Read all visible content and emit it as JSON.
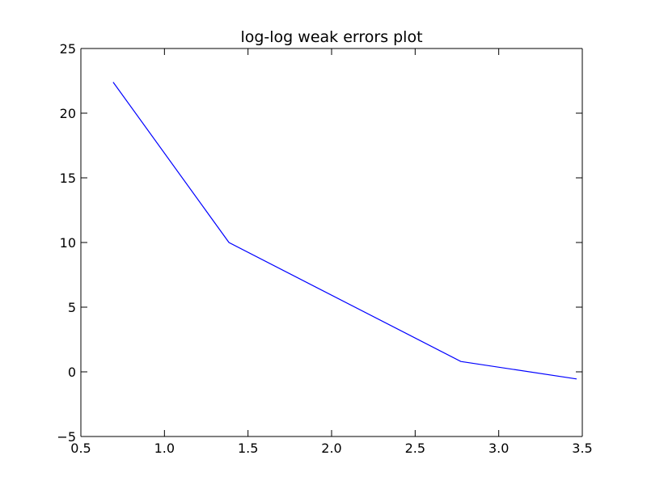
{
  "chart_data": {
    "type": "line",
    "title": "log-log weak errors plot",
    "xlabel": "",
    "ylabel": "",
    "xlim": [
      0.5,
      3.5
    ],
    "ylim": [
      -5,
      25
    ],
    "grid": false,
    "x_ticks": [
      0.5,
      1.0,
      1.5,
      2.0,
      2.5,
      3.0,
      3.5
    ],
    "x_tick_labels": [
      "0.5",
      "1.0",
      "1.5",
      "2.0",
      "2.5",
      "3.0",
      "3.5"
    ],
    "y_ticks": [
      -5,
      0,
      5,
      10,
      15,
      20,
      25
    ],
    "y_tick_labels": [
      "−5",
      "0",
      "5",
      "10",
      "15",
      "20",
      "25"
    ],
    "series": [
      {
        "color": "#0000ff",
        "x": [
          0.693,
          1.386,
          2.773,
          3.466
        ],
        "y": [
          22.4,
          10.0,
          0.8,
          -0.55
        ]
      }
    ]
  }
}
